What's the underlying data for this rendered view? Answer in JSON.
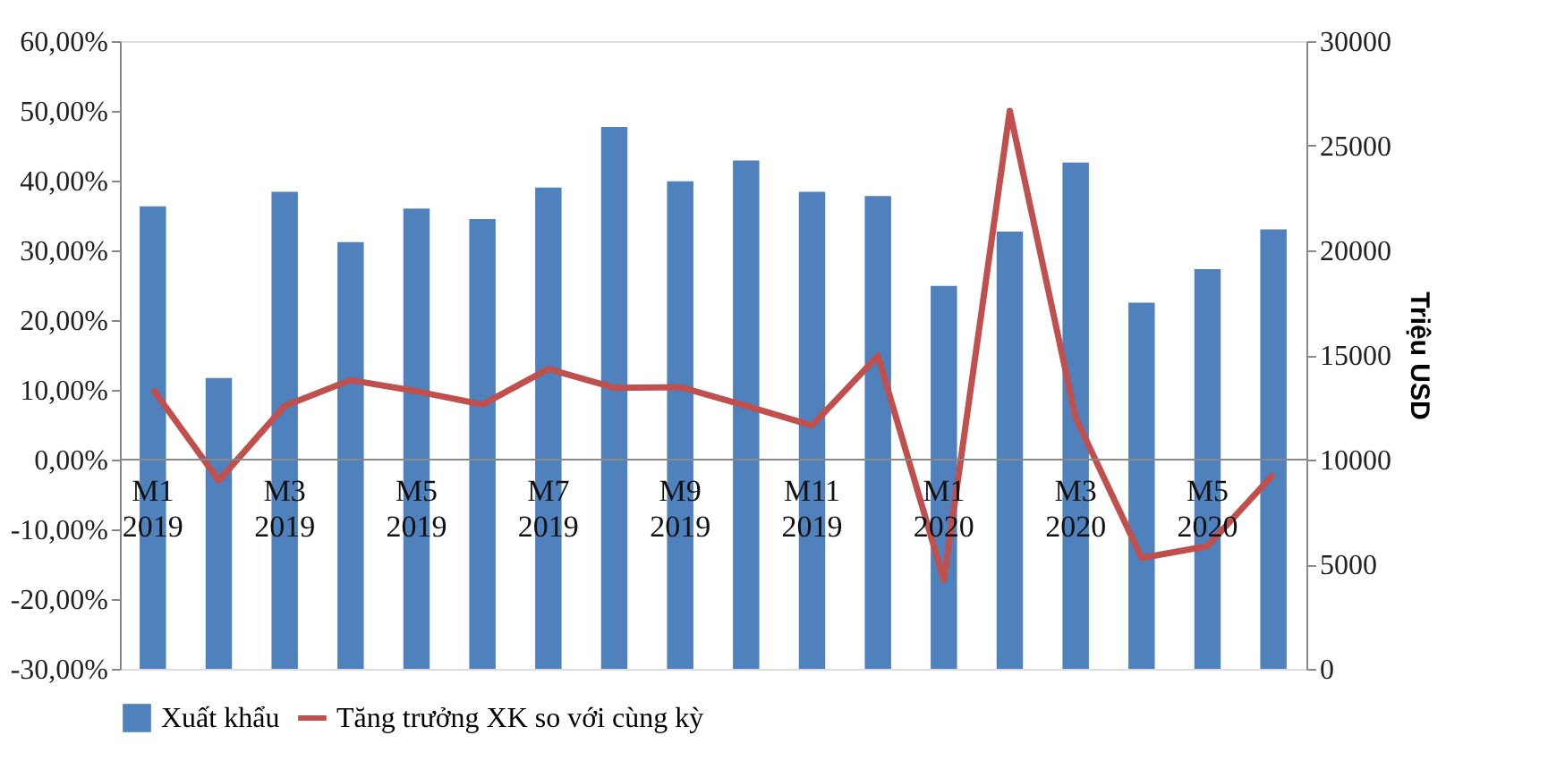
{
  "chart_data": {
    "type": "bar",
    "categories": [
      "M1 2019",
      null,
      "M3 2019",
      null,
      "M5 2019",
      null,
      "M7 2019",
      null,
      "M9 2019",
      null,
      "M11 2019",
      null,
      "M1 2020",
      null,
      "M3 2020",
      null,
      "M5 2020",
      null
    ],
    "series": [
      {
        "name": "Xuất khẩu",
        "axis": "y2",
        "color": "#4f81bd",
        "values": [
          22100,
          13900,
          22800,
          20400,
          22000,
          21500,
          23000,
          25900,
          23300,
          24300,
          22800,
          22600,
          18300,
          20900,
          24200,
          17500,
          19100,
          21000
        ]
      },
      {
        "name": "Tăng trưởng XK so với cùng kỳ",
        "type": "line",
        "axis": "y",
        "color": "#c0504d",
        "values": [
          10.1,
          -3.0,
          7.7,
          11.4,
          9.8,
          7.9,
          13.0,
          10.3,
          10.4,
          7.7,
          4.9,
          14.9,
          -17.3,
          50.0,
          6.0,
          -14.1,
          -12.4,
          -2.1
        ]
      }
    ],
    "ylim": [
      -30,
      60
    ],
    "yticks": [
      {
        "value": -30,
        "label": "-30,00%"
      },
      {
        "value": -20,
        "label": "-20,00%"
      },
      {
        "value": -10,
        "label": "-10,00%"
      },
      {
        "value": 0,
        "label": "0,00%"
      },
      {
        "value": 10,
        "label": "10,00%"
      },
      {
        "value": 20,
        "label": "20,00%"
      },
      {
        "value": 30,
        "label": "30,00%"
      },
      {
        "value": 40,
        "label": "40,00%"
      },
      {
        "value": 50,
        "label": "50,00%"
      },
      {
        "value": 60,
        "label": "60,00%"
      }
    ],
    "y2lim": [
      0,
      30000
    ],
    "y2ticks": [
      0,
      5000,
      10000,
      15000,
      20000,
      25000,
      30000
    ],
    "y2label": "Triệu USD",
    "grid": false,
    "legend": "bottom",
    "marker": "none",
    "line_style": "solid"
  }
}
